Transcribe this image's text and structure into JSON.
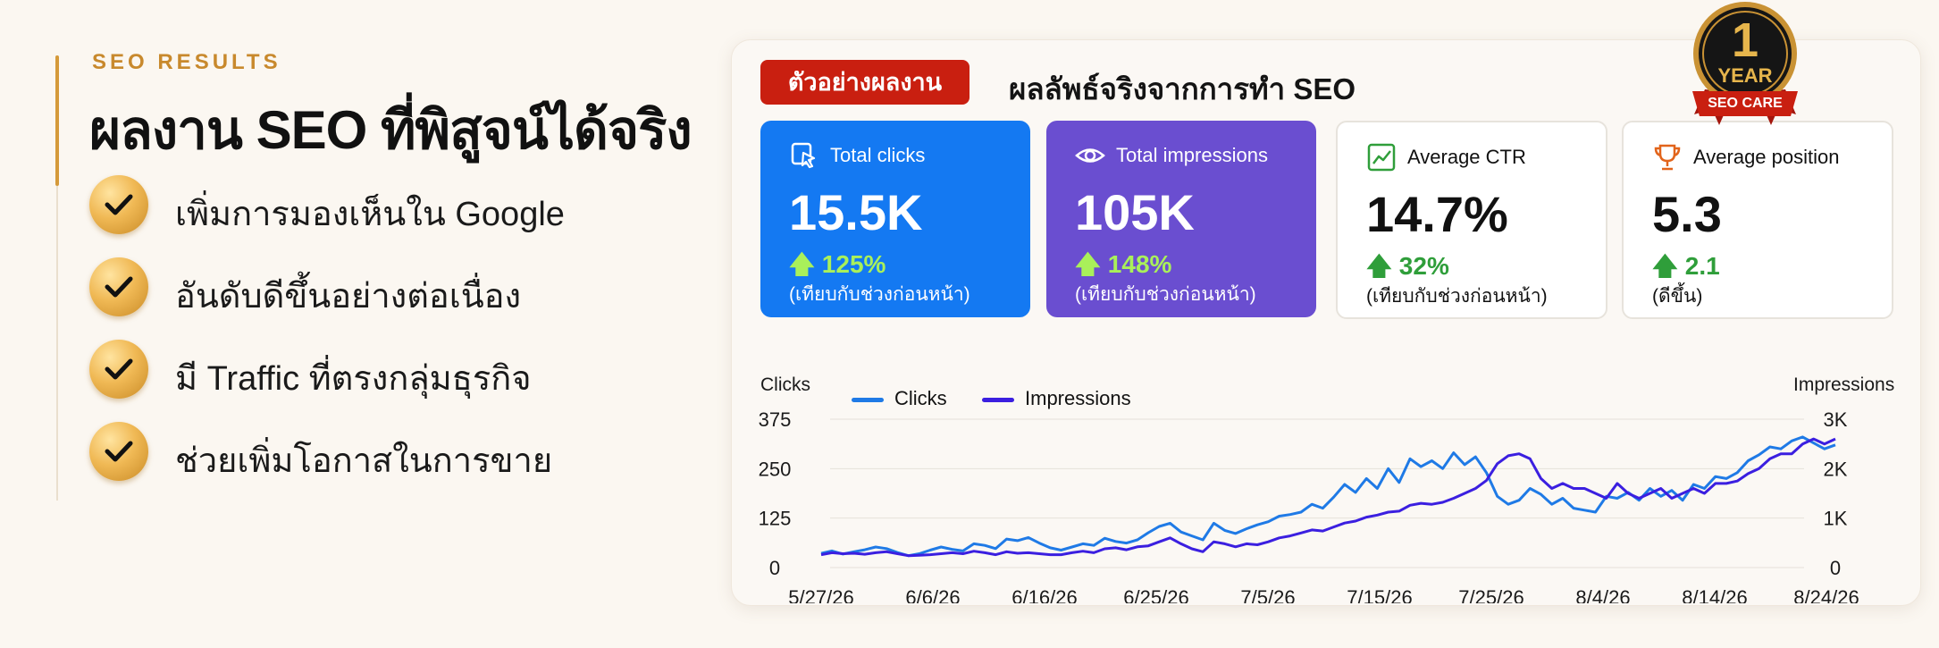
{
  "left": {
    "eyebrow": "SEO RESULTS",
    "headline": "ผลงาน SEO ที่พิสูจน์ได้จริง",
    "benefits": [
      "เพิ่มการมองเห็นใน Google",
      "อันดับดีขึ้นอย่างต่อเนื่อง",
      "มี Traffic ที่ตรงกลุ่มธุรกิจ",
      "ช่วยเพิ่มโอกาสในการขาย"
    ]
  },
  "panel": {
    "sample_tag": "ตัวอย่างผลงาน",
    "title": "ผลลัพธ์จริงจากการทำ SEO"
  },
  "badge": {
    "number": "1",
    "year": "YEAR",
    "ribbon": "SEO CARE"
  },
  "metrics": [
    {
      "label": "Total clicks",
      "value": "15.5K",
      "delta": "125%",
      "note": "(เทียบกับช่วงก่อนหน้า)",
      "icon": "cursor-click-icon"
    },
    {
      "label": "Total impressions",
      "value": "105K",
      "delta": "148%",
      "note": "(เทียบกับช่วงก่อนหน้า)",
      "icon": "eye-icon"
    },
    {
      "label": "Average CTR",
      "value": "14.7%",
      "delta": "32%",
      "note": "(เทียบกับช่วงก่อนหน้า)",
      "icon": "trend-up-icon"
    },
    {
      "label": "Average position",
      "value": "5.3",
      "delta": "2.1",
      "note": "(ดีขึ้น)",
      "icon": "trophy-icon"
    }
  ],
  "colors": {
    "clicks": "#1f7ae6",
    "impressions": "#3b1fe0",
    "accent_gold": "#d59a3a",
    "sample_red": "#c91f10",
    "card_blue": "#1479f2",
    "card_purple": "#6a4ed0"
  },
  "chart_data": {
    "type": "line",
    "ylabel": "Clicks",
    "y2label": "Impressions",
    "ylim": [
      0,
      375
    ],
    "y2lim": [
      0,
      3000
    ],
    "yticks": [
      "375",
      "250",
      "125",
      "0"
    ],
    "y2ticks": [
      "3K",
      "2K",
      "1K",
      "0"
    ],
    "xticks": [
      "5/27/26",
      "6/6/26",
      "6/16/26",
      "6/25/26",
      "7/5/26",
      "7/15/26",
      "7/25/26",
      "8/4/26",
      "8/14/26",
      "8/24/26"
    ],
    "x_start": "5/27/26",
    "x_end": "8/26/26",
    "grid": true,
    "series": [
      {
        "name": "Clicks",
        "axis": "left",
        "values": [
          36,
          42,
          34,
          40,
          45,
          52,
          48,
          38,
          30,
          35,
          44,
          52,
          46,
          42,
          60,
          56,
          48,
          72,
          68,
          76,
          62,
          50,
          44,
          52,
          60,
          56,
          74,
          66,
          62,
          70,
          88,
          104,
          112,
          90,
          80,
          70,
          112,
          94,
          86,
          98,
          108,
          116,
          130,
          134,
          140,
          160,
          150,
          178,
          210,
          190,
          225,
          200,
          250,
          215,
          275,
          255,
          270,
          250,
          290,
          260,
          280,
          240,
          180,
          160,
          170,
          200,
          185,
          160,
          175,
          150,
          145,
          140,
          180,
          175,
          190,
          170,
          200,
          180,
          195,
          170,
          210,
          200,
          230,
          225,
          240,
          270,
          285,
          305,
          300,
          320,
          330,
          315,
          300,
          310
        ]
      },
      {
        "name": "Impressions",
        "axis": "right",
        "values": [
          260,
          300,
          280,
          290,
          270,
          300,
          320,
          280,
          240,
          250,
          260,
          280,
          300,
          280,
          330,
          300,
          260,
          320,
          290,
          300,
          280,
          260,
          260,
          300,
          330,
          300,
          380,
          400,
          360,
          420,
          440,
          520,
          600,
          480,
          380,
          320,
          520,
          480,
          420,
          480,
          460,
          520,
          600,
          640,
          700,
          760,
          740,
          820,
          900,
          940,
          1020,
          1060,
          1120,
          1140,
          1260,
          1300,
          1280,
          1320,
          1400,
          1500,
          1600,
          1760,
          2100,
          2260,
          2300,
          2200,
          1800,
          1600,
          1700,
          1600,
          1600,
          1500,
          1400,
          1700,
          1500,
          1400,
          1500,
          1600,
          1400,
          1500,
          1600,
          1500,
          1700,
          1700,
          1750,
          1900,
          2000,
          2200,
          2300,
          2300,
          2500,
          2600,
          2500,
          2600
        ]
      }
    ]
  }
}
